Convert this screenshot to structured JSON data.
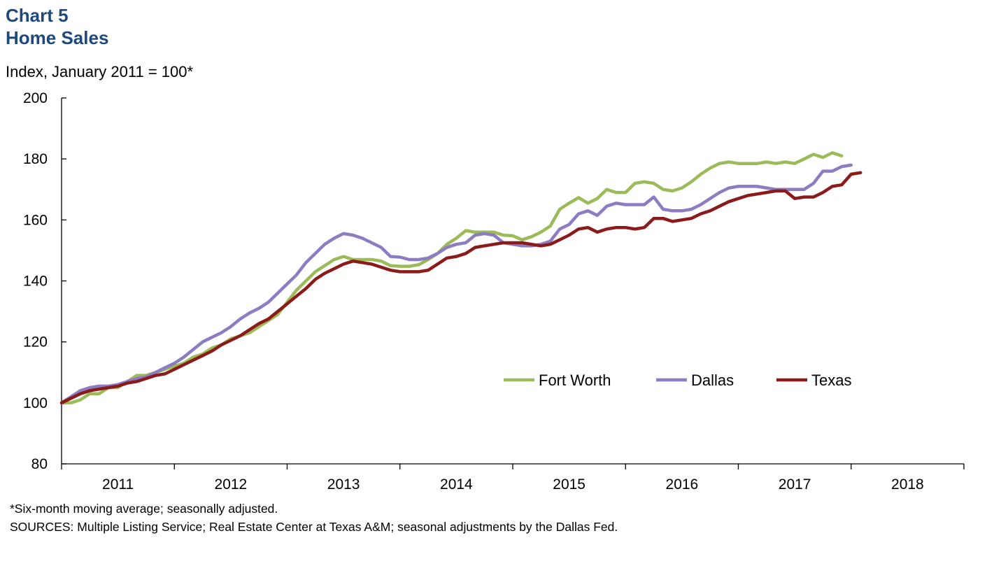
{
  "header": {
    "chart_number": "Chart 5",
    "chart_title": "Home Sales"
  },
  "notes": {
    "footnote": "*Six-month moving average; seasonally adjusted.",
    "sources": "SOURCES: Multiple Listing Service; Real Estate Center at Texas A&M; seasonal adjustments by the Dallas Fed."
  },
  "chart_data": {
    "type": "line",
    "title": "Home Sales",
    "ylabel": "Index, January 2011 = 100*",
    "xlabel": "",
    "ylim": [
      80,
      200
    ],
    "yticks": [
      80,
      100,
      120,
      140,
      160,
      180,
      200
    ],
    "xlim": [
      2011,
      2019
    ],
    "xtick_labels": [
      "2011",
      "2012",
      "2013",
      "2014",
      "2015",
      "2016",
      "2017",
      "2018"
    ],
    "legend_position": "center-right",
    "grid": false,
    "x_start": 2011.0,
    "x_step_months": 1,
    "series": [
      {
        "name": "Fort Worth",
        "color": "#9bbb59",
        "values": [
          100,
          100,
          101,
          103,
          103,
          105,
          105,
          107,
          109,
          109,
          110,
          111,
          112,
          113,
          115,
          116,
          118,
          119,
          121,
          122,
          123,
          125,
          127,
          129,
          133,
          137,
          140,
          143,
          145,
          147,
          148,
          147,
          147,
          147,
          146.5,
          145,
          144.8,
          144.8,
          145.3,
          147,
          149,
          152,
          154,
          156.5,
          156,
          156,
          156,
          155,
          154.8,
          153.5,
          154.5,
          156,
          158,
          163.5,
          165.5,
          167.3,
          165.5,
          167,
          170,
          169,
          169,
          172,
          172.5,
          172,
          170,
          169.5,
          170.5,
          172.5,
          175,
          177,
          178.5,
          179,
          178.5,
          178.5,
          178.5,
          179,
          178.5,
          179,
          178.5,
          180,
          181.5,
          180.5,
          182,
          181
        ]
      },
      {
        "name": "Dallas",
        "color": "#8e7cc3",
        "values": [
          100,
          102,
          104,
          105,
          105.5,
          105.5,
          106,
          107,
          108,
          108.5,
          110,
          111.5,
          113,
          115,
          117.5,
          120,
          121.5,
          123,
          125,
          127.5,
          129.5,
          131,
          133,
          136,
          139,
          142,
          146,
          149,
          152,
          154,
          155.5,
          155,
          154,
          152.5,
          151,
          148,
          147.8,
          147,
          147,
          147.5,
          149,
          151,
          152,
          152.5,
          155,
          155.5,
          155,
          152.5,
          152,
          151.5,
          151.5,
          152,
          153,
          157,
          158.5,
          162,
          163,
          161.5,
          164.5,
          165.5,
          165,
          165,
          165,
          167.5,
          163.5,
          163,
          163,
          163.5,
          165,
          167,
          169,
          170.5,
          171,
          171,
          171,
          170.5,
          170,
          170,
          170,
          170,
          172,
          176,
          176,
          177.5,
          178
        ]
      },
      {
        "name": "Texas",
        "color": "#8b1a1a",
        "values": [
          100,
          101.5,
          103,
          104,
          104.5,
          105,
          105.5,
          106.5,
          107,
          108,
          109,
          109.5,
          111,
          112.5,
          114,
          115.5,
          117,
          119,
          120.5,
          122,
          124,
          126,
          127.5,
          130,
          132.5,
          135,
          137.5,
          140.5,
          142.5,
          144,
          145.5,
          146.5,
          146,
          145.5,
          144.5,
          143.5,
          143,
          143,
          143,
          143.5,
          145.5,
          147.5,
          148,
          149,
          151,
          151.5,
          152,
          152.5,
          152.5,
          152.5,
          152,
          151.5,
          152,
          153.5,
          155,
          157,
          157.5,
          156,
          157,
          157.5,
          157.5,
          157,
          157.5,
          160.5,
          160.5,
          159.5,
          160,
          160.5,
          162,
          163,
          164.5,
          166,
          167,
          168,
          168.5,
          169,
          169.5,
          169.5,
          167,
          167.5,
          167.5,
          169,
          171,
          171.5,
          175,
          175.5
        ]
      }
    ]
  }
}
